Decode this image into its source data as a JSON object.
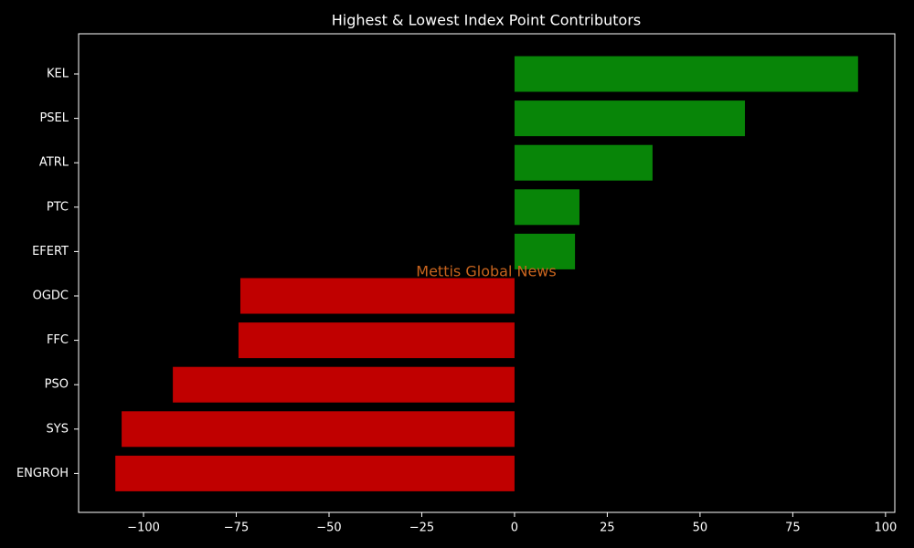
{
  "chart_data": {
    "type": "hbar",
    "title": "Highest & Lowest Index Point Contributors",
    "watermark": "Mettis Global News",
    "categories": [
      "KEL",
      "PSEL",
      "ATRL",
      "PTC",
      "EFERT",
      "OGDC",
      "FFC",
      "PSO",
      "SYS",
      "ENGROH"
    ],
    "values": [
      92.6,
      62.1,
      37.2,
      17.5,
      16.3,
      -73.9,
      -74.4,
      -92.1,
      -105.9,
      -107.6
    ],
    "colors": [
      "#088508",
      "#088508",
      "#088508",
      "#088508",
      "#088508",
      "#c00000",
      "#c00000",
      "#c00000",
      "#c00000",
      "#c00000"
    ],
    "xlim": [
      -117.5,
      102.5
    ],
    "xticks": [
      {
        "value": -100,
        "label": "−100"
      },
      {
        "value": -75,
        "label": "−75"
      },
      {
        "value": -50,
        "label": "−50"
      },
      {
        "value": -25,
        "label": "−25"
      },
      0,
      25,
      50,
      75,
      100
    ]
  }
}
